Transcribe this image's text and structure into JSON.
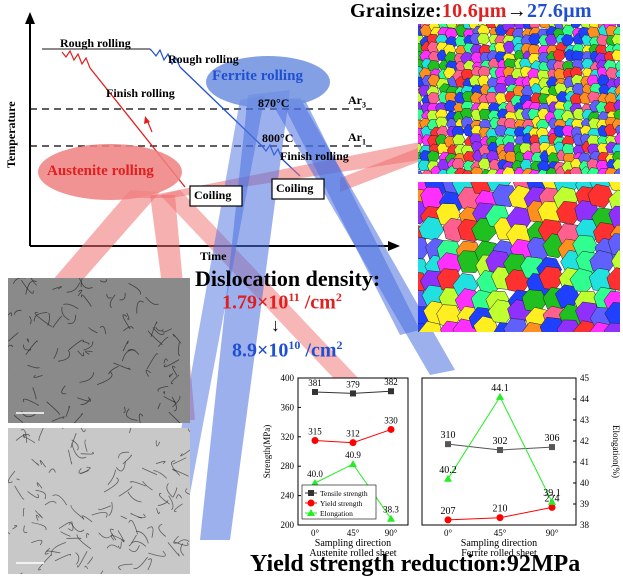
{
  "header": {
    "grain_label": "Grainsize:",
    "grain_before": "10.6μm",
    "arrow": "→",
    "grain_after": "27.6μm"
  },
  "process": {
    "y_label": "Temperature",
    "x_label": "Time",
    "rough1": "Rough rolling",
    "rough2": "Rough rolling",
    "finish1": "Finish rolling",
    "finish2": "Finish rolling",
    "ferrite": "Ferrite rolling",
    "austenite": "Austenite rolling",
    "t870": "870°C",
    "t800": "800°C",
    "ar3": "Ar",
    "ar3_sub": "3",
    "ar1": "Ar",
    "ar1_sub": "1",
    "coiling1": "Coiling",
    "coiling2": "Coiling"
  },
  "dislocation": {
    "title": "Dislocation density:",
    "v1_base": "1.79×10",
    "v1_exp": "11",
    "v1_unit": " /cm",
    "v1_unit_exp": "2",
    "arrow": "↓",
    "v2_base": "8.9×10",
    "v2_exp": "10",
    "v2_unit": " /cm",
    "v2_unit_exp": "2"
  },
  "footer": {
    "yield": "Yield strength reduction:92MPa"
  },
  "chart_data": [
    {
      "type": "line",
      "xlabel": "Sampling direction",
      "subtitle": "Austenite rolled sheet",
      "ylabel": "Strength(MPa)",
      "categories": [
        "0°",
        "45°",
        "90°"
      ],
      "ylim": [
        200,
        400
      ],
      "yticks": [
        200,
        240,
        280,
        320,
        360,
        400
      ],
      "legend": [
        "Tensile strength",
        "Yield strength",
        "Elongation"
      ],
      "series": [
        {
          "name": "Tensile strength",
          "values": [
            381,
            379,
            382
          ],
          "color": "#333333",
          "marker": "square"
        },
        {
          "name": "Yield strength",
          "values": [
            315,
            312,
            330
          ],
          "color": "#ff0000",
          "marker": "circle"
        },
        {
          "name": "Elongation",
          "values": [
            40.0,
            40.9,
            38.3
          ],
          "color": "#22ee22",
          "marker": "triangle"
        }
      ]
    },
    {
      "type": "line",
      "xlabel": "Sampling direction",
      "subtitle": "Ferrite rolled sheet",
      "ylabel": "Elongation(%)",
      "categories": [
        "0°",
        "45°",
        "90°"
      ],
      "ylim": [
        38,
        45
      ],
      "yticks": [
        38,
        39,
        40,
        41,
        42,
        43,
        44,
        45
      ],
      "series": [
        {
          "name": "Tensile strength",
          "values": [
            310,
            302,
            306
          ],
          "color": "#555555",
          "marker": "square"
        },
        {
          "name": "Yield strength",
          "values": [
            207,
            210,
            224
          ],
          "color": "#ff0000",
          "marker": "circle"
        },
        {
          "name": "Elongation",
          "values": [
            40.2,
            44.1,
            39.1
          ],
          "color": "#22ee22",
          "marker": "triangle"
        }
      ]
    }
  ],
  "colors": {
    "red": "#e02020",
    "blue": "#2050d0",
    "ellipse_red": "#f08080",
    "ellipse_blue": "#6f8fe0"
  }
}
